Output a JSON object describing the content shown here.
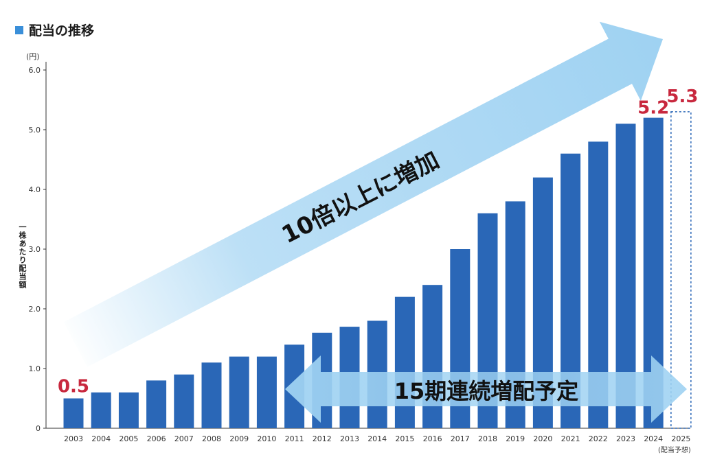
{
  "header": {
    "title": "配当の推移"
  },
  "unit_label": "(円)",
  "forecast_note": "(配当予想)",
  "colors": {
    "bar": "#2a67b7",
    "highlight": "#c8283e",
    "arrow": "#9fd2f2",
    "title_square": "#3a8fd9"
  },
  "annotations": {
    "growth_text": "10倍以上に増加",
    "streak_text": "15期連続増配予定",
    "first_value_label": "0.5",
    "latest_value_label": "5.2",
    "forecast_value_label": "5.3"
  },
  "chart_data": {
    "type": "bar",
    "title": "配当の推移",
    "xlabel": "",
    "ylabel": "一株あたり配当額",
    "ylim": [
      0,
      6
    ],
    "yticks": [
      "0",
      "1.0",
      "2.0",
      "3.0",
      "4.0",
      "5.0",
      "6.0"
    ],
    "grid": false,
    "categories": [
      "2003",
      "2004",
      "2005",
      "2006",
      "2007",
      "2008",
      "2009",
      "2010",
      "2011",
      "2012",
      "2013",
      "2014",
      "2015",
      "2016",
      "2017",
      "2018",
      "2019",
      "2020",
      "2021",
      "2022",
      "2023",
      "2024",
      "2025"
    ],
    "values": [
      0.5,
      0.6,
      0.6,
      0.8,
      0.9,
      1.1,
      1.2,
      1.2,
      1.4,
      1.6,
      1.7,
      1.8,
      2.2,
      2.4,
      3.0,
      3.6,
      3.8,
      4.2,
      4.6,
      4.8,
      5.1,
      5.2,
      5.3
    ],
    "forecast_categories": [
      "2025"
    ]
  }
}
